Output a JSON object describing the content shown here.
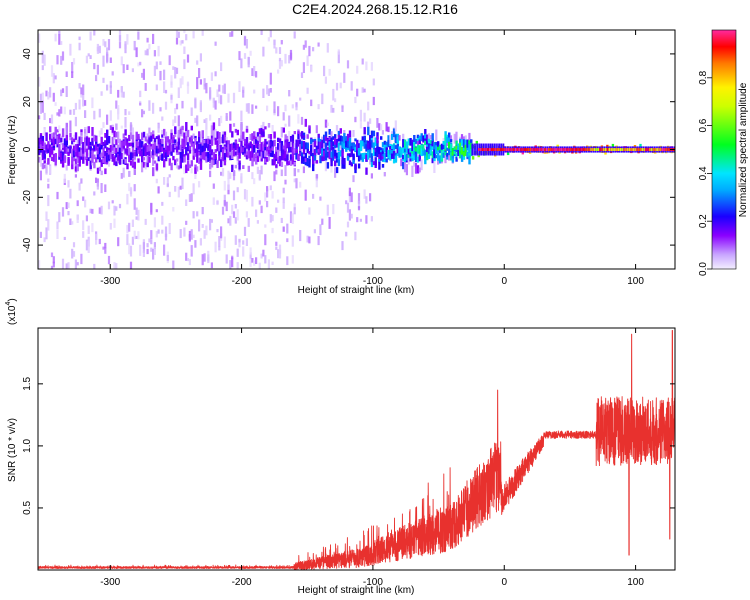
{
  "title": "C2E4.2024.268.15.12.R16",
  "chart_data": [
    {
      "type": "heatmap",
      "xlabel": "Height of straight line (km)",
      "ylabel": "Frequency (Hz)",
      "xlim": [
        -355,
        130
      ],
      "ylim": [
        -50,
        50
      ],
      "xticks": [
        -300,
        -200,
        -100,
        0,
        100
      ],
      "yticks": [
        -40,
        -20,
        0,
        20,
        40
      ],
      "colorbar": {
        "label": "Normalized spectral amplitude",
        "range": [
          0,
          1
        ],
        "ticks": [
          0.0,
          0.2,
          0.4,
          0.6,
          0.8
        ],
        "tick_labels": [
          "0.0",
          "0.2",
          "0.4",
          "0.6",
          "0.8"
        ],
        "colormap": [
          "#f4efff",
          "#8a00ff",
          "#1a00ff",
          "#00e5ff",
          "#00ff20",
          "#fff200",
          "#ff0000",
          "#ff2aa0"
        ]
      },
      "features": [
        {
          "x_range": [
            -355,
            -160
          ],
          "freq_center": 0,
          "freq_halfwidth_core": 12,
          "amplitude_core": 0.15,
          "scatter_extent": [
            -50,
            50
          ],
          "scatter_amplitude": 0.05
        },
        {
          "x_range": [
            -160,
            -100
          ],
          "freq_center": 0,
          "freq_halfwidth_core": 10,
          "amplitude_core": 0.3,
          "scatter_extent": [
            -30,
            45
          ],
          "scatter_amplitude": 0.05
        },
        {
          "x_range": [
            -100,
            -25
          ],
          "freq_center": 0,
          "freq_halfwidth_core": 7,
          "amplitude_core": 0.45
        },
        {
          "x_range": [
            -25,
            130
          ],
          "freq_center": 0,
          "freq_halfwidth_core": 1.5,
          "amplitude_core": 0.85
        }
      ]
    },
    {
      "type": "line",
      "xlabel": "Height of straight line (km)",
      "ylabel": "SNR (10 * v/v)",
      "y_multiplier_label": "(x10^4)",
      "xlim": [
        -355,
        130
      ],
      "ylim": [
        0,
        1.95
      ],
      "xticks": [
        -300,
        -200,
        -100,
        0,
        100
      ],
      "yticks": [
        0.5,
        1.0,
        1.5
      ],
      "ytick_labels": [
        "0.5",
        "1.0",
        "1.5"
      ],
      "color": "#e8312e",
      "segments": [
        {
          "x": [
            -355,
            -160
          ],
          "y_mean": 0.02,
          "y_noise": 0.01
        },
        {
          "x": [
            -160,
            -110
          ],
          "y_mean_start": 0.03,
          "y_mean_end": 0.1,
          "y_noise": 0.08
        },
        {
          "x": [
            -110,
            -40
          ],
          "y_mean_start": 0.1,
          "y_mean_end": 0.35,
          "y_noise": 0.2
        },
        {
          "x": [
            -40,
            -2
          ],
          "y_mean_start": 0.35,
          "y_mean_end": 0.8,
          "y_noise": 0.3,
          "peak": [
            -5,
            1.45
          ]
        },
        {
          "x": [
            -2,
            30
          ],
          "y_mean_start": 0.55,
          "y_mean_end": 1.05,
          "y_noise": 0.12
        },
        {
          "x": [
            30,
            70
          ],
          "y_mean_start": 1.08,
          "y_mean_end": 1.12,
          "y_noise": 0.05
        },
        {
          "x": [
            70,
            130
          ],
          "y_mean": 1.15,
          "y_noise": 0.35,
          "peaks": [
            [
              97,
              1.9
            ],
            [
              128,
              1.93
            ]
          ],
          "dips": [
            [
              95,
              0.12
            ],
            [
              126,
              0.25
            ]
          ]
        }
      ]
    }
  ]
}
